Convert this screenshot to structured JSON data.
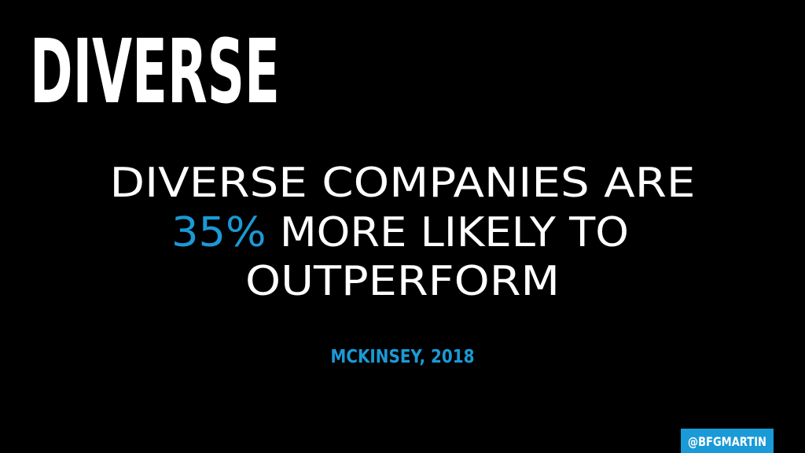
{
  "slide": {
    "title": "DIVERSE",
    "statement": {
      "line1": "DIVERSE COMPANIES ARE",
      "highlight": "35%",
      "line2": "MORE LIKELY TO",
      "line3": "OUTPERFORM"
    },
    "source": "MCKINSEY, 2018",
    "handle": "@BFGMARTIN"
  }
}
